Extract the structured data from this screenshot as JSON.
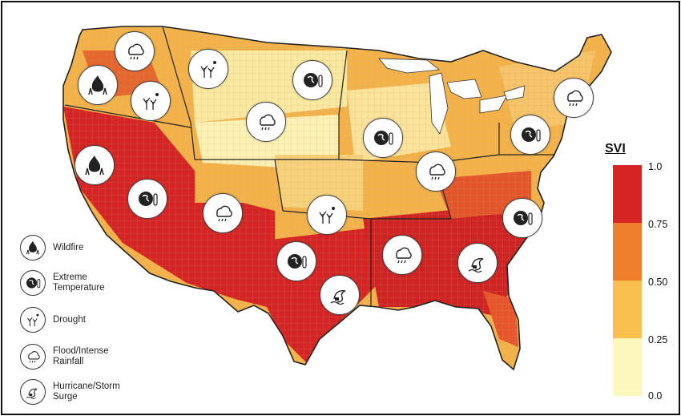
{
  "legend": {
    "title": "SVI",
    "ticks": [
      "1.0",
      "0.75",
      "0.50",
      "0.25",
      "0.0"
    ],
    "colors": [
      "#d62424",
      "#ef7f2c",
      "#f9c04f",
      "#fdf7bd"
    ]
  },
  "hazards": {
    "wildfire": "Wildfire",
    "temperature_1": "Extreme",
    "temperature_2": "Temperature",
    "drought": "Drought",
    "flood_1": "Flood/Intense",
    "flood_2": "Rainfall",
    "hurricane_1": "Hurricane/Storm",
    "hurricane_2": "Surge"
  }
}
